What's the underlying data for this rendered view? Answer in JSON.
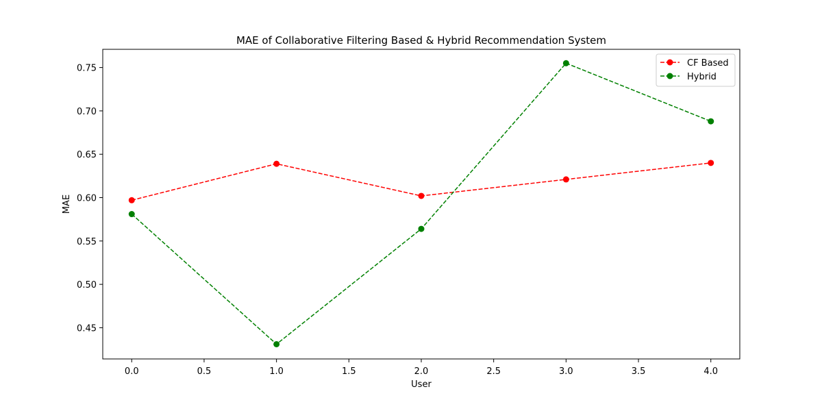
{
  "chart_data": {
    "type": "line",
    "title": "MAE of Collaborative Filtering Based & Hybrid Recommendation System",
    "xlabel": "User",
    "ylabel": "MAE",
    "xlim": [
      -0.2,
      4.2
    ],
    "ylim": [
      0.414,
      0.771
    ],
    "x_ticks": [
      "0.0",
      "0.5",
      "1.0",
      "1.5",
      "2.0",
      "2.5",
      "3.0",
      "3.5",
      "4.0"
    ],
    "y_ticks": [
      "0.45",
      "0.50",
      "0.55",
      "0.60",
      "0.65",
      "0.70",
      "0.75"
    ],
    "grid": false,
    "legend_position": "top-right",
    "x": [
      0,
      1,
      2,
      3,
      4
    ],
    "series": [
      {
        "name": "CF Based",
        "color": "#ff0000",
        "line_style": "dashed",
        "marker": "circle",
        "values": [
          0.597,
          0.639,
          0.602,
          0.621,
          0.64
        ]
      },
      {
        "name": "Hybrid",
        "color": "#008000",
        "line_style": "dashed",
        "marker": "circle",
        "values": [
          0.581,
          0.431,
          0.564,
          0.755,
          0.688
        ]
      }
    ]
  }
}
